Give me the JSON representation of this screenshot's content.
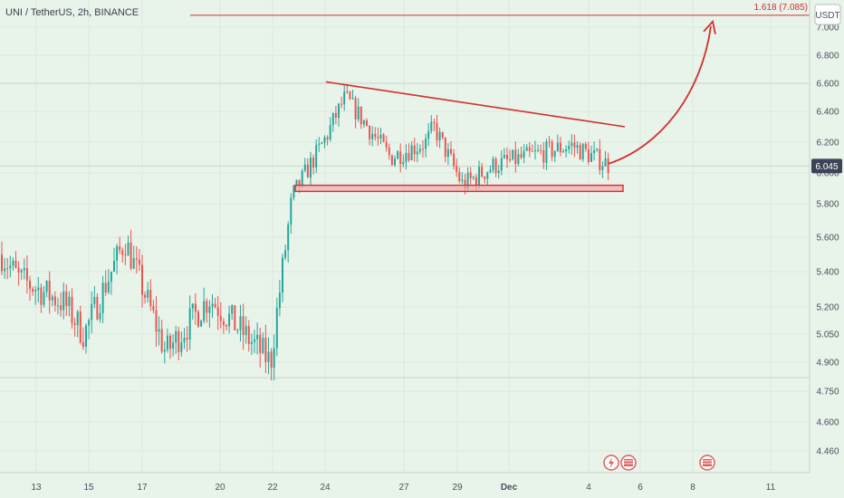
{
  "header": {
    "symbol": "UNI / TetherUS, 2h, BINANCE"
  },
  "currency_badge": "USDT",
  "fib_label": "1.618 (7.085)",
  "last_price": "6.045",
  "colors": {
    "up": "#26a69a",
    "down": "#ef5350",
    "drawing": "#d32f2f",
    "background": "#e8f3ea",
    "price_label_bg": "#3d4457"
  },
  "chart_data": {
    "type": "candlestick",
    "title": "UNI / TetherUS, 2h, BINANCE",
    "y_ticks": [
      "7.000",
      "6.800",
      "6.600",
      "6.400",
      "6.200",
      "6.000",
      "5.800",
      "5.600",
      "5.400",
      "5.200",
      "5.050",
      "4.900",
      "4.750",
      "4.600",
      "4.460"
    ],
    "x_ticks": [
      "13",
      "15",
      "17",
      "20",
      "22",
      "24",
      "27",
      "29",
      "Dec",
      "4",
      "6",
      "8",
      "11"
    ],
    "ylim": [
      4.35,
      7.15
    ],
    "axis_y": "right",
    "grid": true,
    "horizontal_levels": [
      {
        "name": "1.618 (7.085)",
        "value": 7.085
      },
      {
        "value": 6.6
      },
      {
        "value": 6.045
      },
      {
        "value": 4.82
      }
    ],
    "price_path": [
      [
        "13",
        5.5
      ],
      [
        "13",
        5.36
      ],
      [
        "15",
        5.22
      ],
      [
        "15",
        5.05
      ],
      [
        "17",
        5.58
      ],
      [
        "17",
        4.95
      ],
      [
        "20",
        5.25
      ],
      [
        "22",
        4.9
      ],
      [
        "22",
        5.85
      ],
      [
        "24",
        6.22
      ],
      [
        "24",
        6.5
      ],
      [
        "27",
        6.1
      ],
      [
        "27",
        6.2
      ],
      [
        "29",
        6.3
      ],
      [
        "29",
        5.92
      ],
      [
        "Dec",
        6.05
      ],
      [
        "4",
        6.18
      ],
      [
        "4",
        6.05
      ]
    ],
    "annotations": {
      "resistance_trendline": {
        "from": [
          "24",
          6.61
        ],
        "to": [
          "4",
          6.3
        ]
      },
      "support_zone": {
        "low": 5.88,
        "high": 5.92,
        "from": "22",
        "to": "4"
      },
      "projection_arrow": {
        "from": [
          "4",
          6.06
        ],
        "to": [
          "8",
          7.085
        ]
      }
    }
  }
}
